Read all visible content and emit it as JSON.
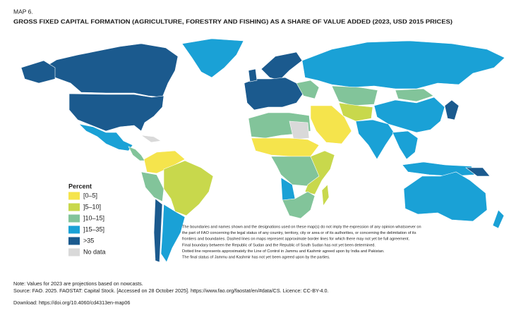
{
  "header": {
    "label": "MAP 6.",
    "title": "GROSS FIXED CAPITAL FORMATION (AGRICULTURE, FORESTRY AND FISHING) AS A SHARE OF VALUE ADDED (2023, USD 2015 PRICES)"
  },
  "legend": {
    "title": "Percent",
    "items": [
      {
        "label": "[0–5]",
        "color": "#f5e44c"
      },
      {
        "label": "]5–10]",
        "color": "#c8d84c"
      },
      {
        "label": "]10–15]",
        "color": "#82c49a"
      },
      {
        "label": "]15–35]",
        "color": "#1aa1d6"
      },
      {
        "label": ">35",
        "color": "#1b5a8e"
      },
      {
        "label": "No data",
        "color": "#d9d9d9"
      }
    ]
  },
  "disclaimer": [
    "The boundaries and names shown and the designations used on these map(s) do not imply the expression of any opinion whatsoever on",
    "the part of FAO concerning the legal status of any country, territory, city or area or of its authorities, or concerning the delimitation of its",
    "frontiers and boundaries. Dashed lines on maps represent approximate border lines for which there may not yet be full agreement.",
    "Final boundary between the Republic of Sudan and the Republic of South Sudan has not yet been determined.",
    "Dotted line represents approximately the Line of Control in Jammu and Kashmir agreed upon by India and Pakistan.",
    "The final status of Jammu and Kashmir has not yet been agreed upon by the parties."
  ],
  "footer": {
    "note": "Note: Values for 2023 are projections based on nowcasts.",
    "source": "Source: FAO. 2025. FAOSTAT: Capital Stock. [Accessed on 28 October 2025]. https://www.fao.org/faostat/en/#data/CS. Licence: CC-BY-4.0.",
    "download": "Download: https://doi.org/10.4060/cd4313en-map06"
  }
}
